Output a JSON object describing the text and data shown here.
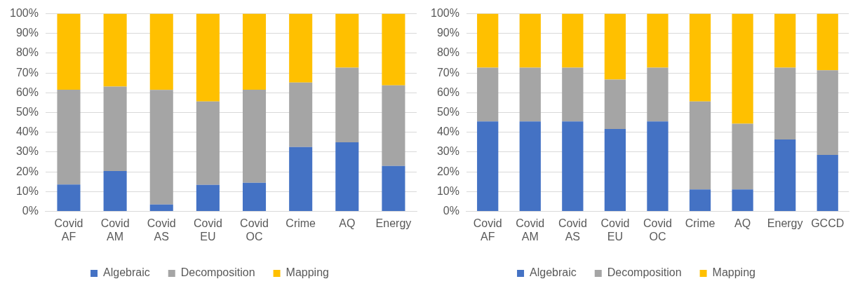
{
  "chart_data": [
    {
      "type": "bar",
      "stacked": true,
      "categories": [
        "Covid AF",
        "Covid AM",
        "Covid AS",
        "Covid EU",
        "Covid OC",
        "Crime",
        "AQ",
        "Energy"
      ],
      "series": [
        {
          "name": "Algebraic",
          "color": "#4472c4",
          "values": [
            13.6,
            20.4,
            3.5,
            13.4,
            14.5,
            32.6,
            35,
            23
          ]
        },
        {
          "name": "Decomposition",
          "color": "#a5a5a5",
          "values": [
            48,
            42.8,
            58,
            42.2,
            47.1,
            32.6,
            37.7,
            40.8
          ]
        },
        {
          "name": "Mapping",
          "color": "#ffc000",
          "values": [
            38.4,
            36.8,
            38.5,
            44.4,
            38.4,
            34.8,
            27.3,
            36.2
          ]
        }
      ],
      "ylim": [
        0,
        100
      ],
      "yticks": [
        {
          "value": 0,
          "label": "0%"
        },
        {
          "value": 10,
          "label": "10%"
        },
        {
          "value": 20,
          "label": "20%"
        },
        {
          "value": 30,
          "label": "30%"
        },
        {
          "value": 40,
          "label": "40%"
        },
        {
          "value": 50,
          "label": "50%"
        },
        {
          "value": 60,
          "label": "60%"
        },
        {
          "value": 70,
          "label": "70%"
        },
        {
          "value": 80,
          "label": "80%"
        },
        {
          "value": 90,
          "label": "90%"
        },
        {
          "value": 100,
          "label": "100%"
        }
      ],
      "grid": "y",
      "legend": "bottom"
    },
    {
      "type": "bar",
      "stacked": true,
      "categories": [
        "Covid AF",
        "Covid AM",
        "Covid AS",
        "Covid EU",
        "Covid OC",
        "Crime",
        "AQ",
        "Energy",
        "GCCD"
      ],
      "series": [
        {
          "name": "Algebraic",
          "color": "#4472c4",
          "values": [
            45.5,
            45.5,
            45.5,
            41.7,
            45.5,
            11.1,
            11.1,
            36.4,
            28.6
          ]
        },
        {
          "name": "Decomposition",
          "color": "#a5a5a5",
          "values": [
            27.2,
            27.2,
            27.2,
            25,
            27.2,
            44.5,
            33.3,
            36.3,
            42.8
          ]
        },
        {
          "name": "Mapping",
          "color": "#ffc000",
          "values": [
            27.3,
            27.3,
            27.3,
            33.3,
            27.3,
            44.4,
            55.6,
            27.3,
            28.6
          ]
        }
      ],
      "ylim": [
        0,
        100
      ],
      "yticks": [
        {
          "value": 0,
          "label": "0%"
        },
        {
          "value": 10,
          "label": "10%"
        },
        {
          "value": 20,
          "label": "20%"
        },
        {
          "value": 30,
          "label": "30%"
        },
        {
          "value": 40,
          "label": "40%"
        },
        {
          "value": 50,
          "label": "50%"
        },
        {
          "value": 60,
          "label": "60%"
        },
        {
          "value": 70,
          "label": "70%"
        },
        {
          "value": 80,
          "label": "80%"
        },
        {
          "value": 90,
          "label": "90%"
        },
        {
          "value": 100,
          "label": "100%"
        }
      ],
      "grid": "y",
      "legend": "bottom"
    }
  ]
}
